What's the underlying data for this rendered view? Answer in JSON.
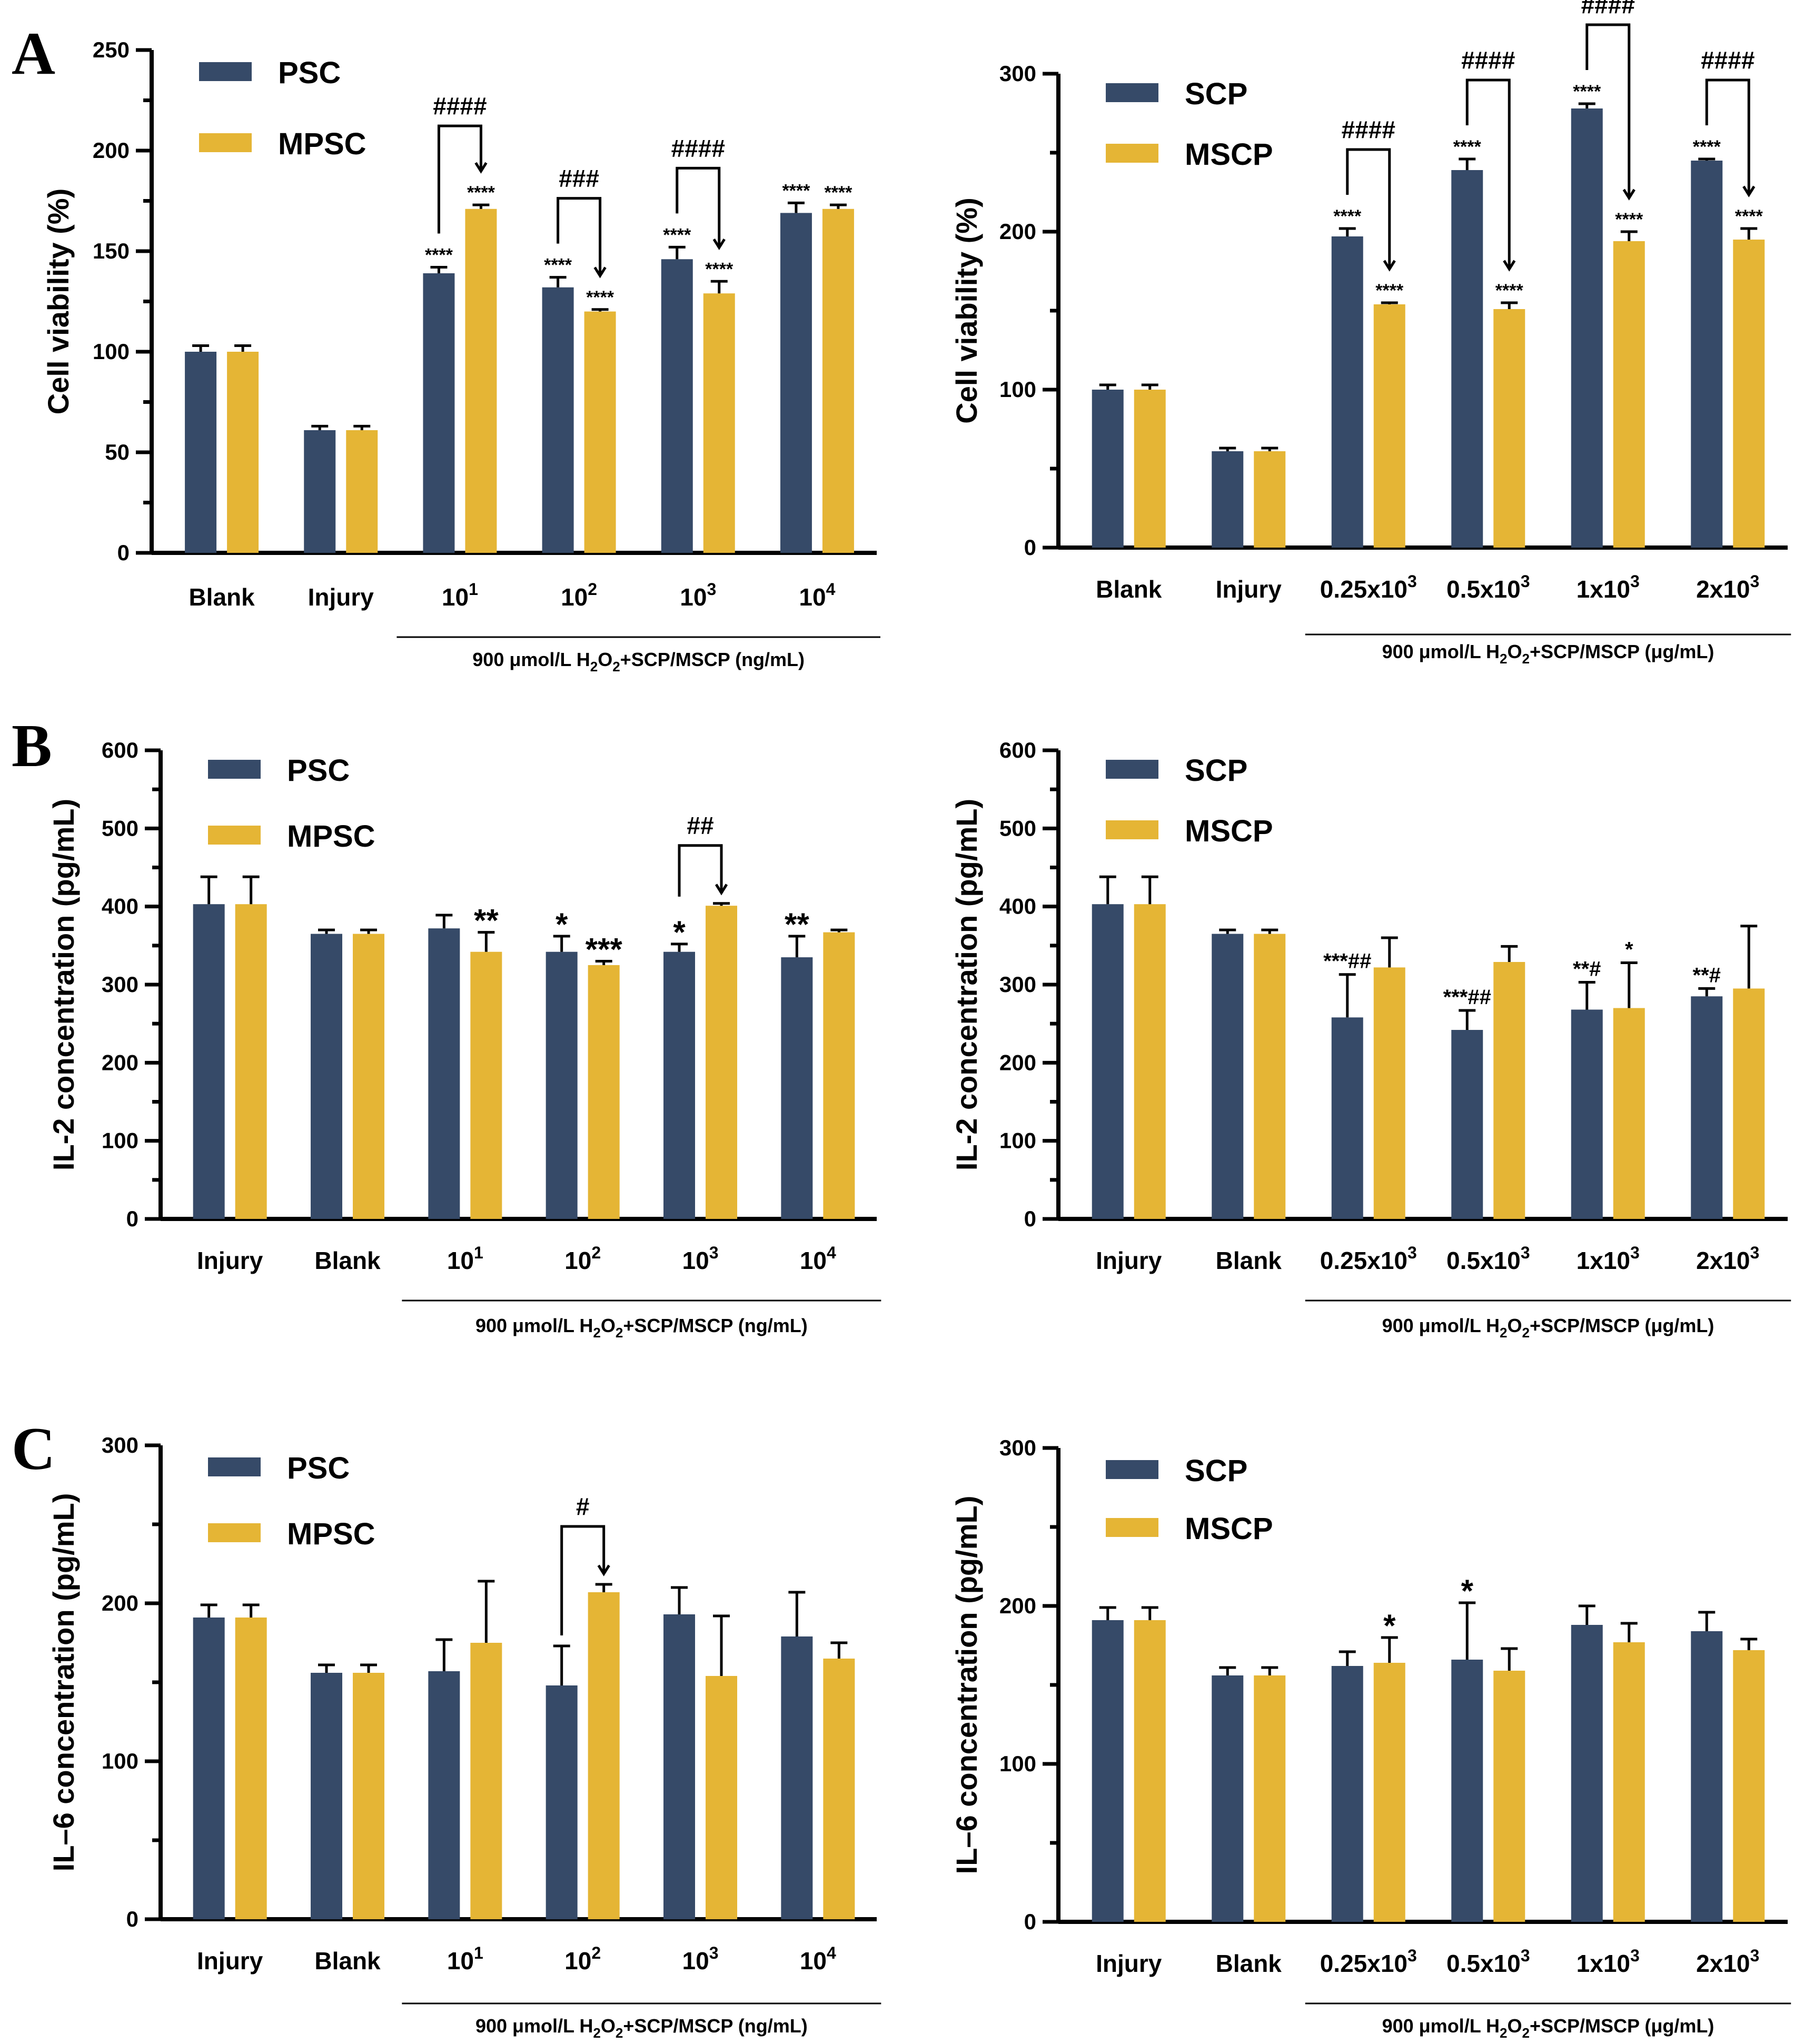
{
  "colors": {
    "series1": "#364a68",
    "series2": "#e5b535"
  },
  "panel_labels": [
    "A",
    "B",
    "C"
  ],
  "chart_data": [
    {
      "id": "A-left",
      "type": "bar",
      "ylabel": "Cell viability (%)",
      "ylim": [
        0,
        250
      ],
      "yticks": [
        0,
        50,
        100,
        150,
        200,
        250
      ],
      "categories": [
        {
          "base": "Blank"
        },
        {
          "base": "Injury"
        },
        {
          "base": "10",
          "sup": "1"
        },
        {
          "base": "10",
          "sup": "2"
        },
        {
          "base": "10",
          "sup": "3"
        },
        {
          "base": "10",
          "sup": "4"
        }
      ],
      "treatment_label": {
        "pre": "900 μmol/L H",
        "sub1": "2",
        "mid": "O",
        "sub2": "2",
        "post": "+SCP/MSCP (ng/mL)"
      },
      "treatment_span": [
        2,
        5
      ],
      "series": [
        {
          "name": "PSC",
          "values": [
            100,
            61,
            139,
            132,
            146,
            169
          ],
          "errors": [
            3,
            2,
            3,
            5,
            6,
            5
          ],
          "annotations": [
            "",
            "",
            "****",
            "****",
            "****",
            "****"
          ]
        },
        {
          "name": "MPSC",
          "values": [
            100,
            61,
            171,
            120,
            129,
            171
          ],
          "errors": [
            3,
            2,
            2,
            1,
            6,
            2
          ],
          "annotations": [
            "",
            "",
            "****",
            "****",
            "****",
            "****"
          ]
        }
      ],
      "brackets": [
        {
          "category": 2,
          "label": "####"
        },
        {
          "category": 3,
          "label": "###"
        },
        {
          "category": 4,
          "label": "####"
        }
      ],
      "annot_size": "small"
    },
    {
      "id": "A-right",
      "type": "bar",
      "ylabel": "Cell viability (%)",
      "ylim": [
        0,
        300
      ],
      "yticks": [
        0,
        100,
        200,
        300
      ],
      "categories": [
        {
          "base": "Blank"
        },
        {
          "base": "Injury"
        },
        {
          "base": "0.25x10",
          "sup": "3"
        },
        {
          "base": "0.5x10",
          "sup": "3"
        },
        {
          "base": "1x10",
          "sup": "3"
        },
        {
          "base": "2x10",
          "sup": "3"
        }
      ],
      "treatment_label": {
        "pre": "900 μmol/L H",
        "sub1": "2",
        "mid": "O",
        "sub2": "2",
        "post": "+SCP/MSCP (μg/mL)"
      },
      "treatment_span": [
        2,
        5
      ],
      "series": [
        {
          "name": "SCP",
          "values": [
            100,
            61,
            197,
            239,
            278,
            245
          ],
          "errors": [
            3,
            2,
            5,
            7,
            3,
            1
          ],
          "annotations": [
            "",
            "",
            "****",
            "****",
            "****",
            "****"
          ]
        },
        {
          "name": "MSCP",
          "values": [
            100,
            61,
            154,
            151,
            194,
            195
          ],
          "errors": [
            3,
            2,
            1,
            4,
            6,
            7
          ],
          "annotations": [
            "",
            "",
            "****",
            "****",
            "****",
            "****"
          ]
        }
      ],
      "brackets": [
        {
          "category": 2,
          "label": "####"
        },
        {
          "category": 3,
          "label": "####"
        },
        {
          "category": 4,
          "label": "####"
        },
        {
          "category": 5,
          "label": "####"
        }
      ],
      "annot_size": "small"
    },
    {
      "id": "B-left",
      "type": "bar",
      "ylabel": "IL-2 concentration  (pg/mL)",
      "ylim": [
        0,
        600
      ],
      "yticks": [
        0,
        100,
        200,
        300,
        400,
        500,
        600
      ],
      "categories": [
        {
          "base": "Injury"
        },
        {
          "base": "Blank"
        },
        {
          "base": "10",
          "sup": "1"
        },
        {
          "base": "10",
          "sup": "2"
        },
        {
          "base": "10",
          "sup": "3"
        },
        {
          "base": "10",
          "sup": "4"
        }
      ],
      "treatment_label": {
        "pre": "900 μmol/L H",
        "sub1": "2",
        "mid": "O",
        "sub2": "2",
        "post": "+SCP/MSCP (ng/mL)"
      },
      "treatment_span": [
        2,
        5
      ],
      "series": [
        {
          "name": "PSC",
          "values": [
            403,
            365,
            372,
            342,
            342,
            335
          ],
          "errors": [
            35,
            5,
            17,
            20,
            10,
            27
          ],
          "annotations": [
            "",
            "",
            "",
            "*",
            "*",
            "**"
          ]
        },
        {
          "name": "MPSC",
          "values": [
            403,
            365,
            342,
            325,
            401,
            367
          ],
          "errors": [
            35,
            5,
            25,
            5,
            3,
            3
          ],
          "annotations": [
            "",
            "",
            "**",
            "***",
            "",
            ""
          ]
        }
      ],
      "brackets": [
        {
          "category": 4,
          "label": "##"
        }
      ],
      "annot_size": "large"
    },
    {
      "id": "B-right",
      "type": "bar",
      "ylabel": "IL-2 concentration  (pg/mL)",
      "ylim": [
        0,
        600
      ],
      "yticks": [
        0,
        100,
        200,
        300,
        400,
        500,
        600
      ],
      "categories": [
        {
          "base": "Injury"
        },
        {
          "base": "Blank"
        },
        {
          "base": "0.25x10",
          "sup": "3"
        },
        {
          "base": "0.5x10",
          "sup": "3"
        },
        {
          "base": "1x10",
          "sup": "3"
        },
        {
          "base": "2x10",
          "sup": "3"
        }
      ],
      "treatment_label": {
        "pre": "900 μmol/L H",
        "sub1": "2",
        "mid": "O",
        "sub2": "2",
        "post": "+SCP/MSCP (μg/mL)"
      },
      "treatment_span": [
        2,
        5
      ],
      "series": [
        {
          "name": "SCP",
          "values": [
            403,
            365,
            258,
            242,
            268,
            285
          ],
          "errors": [
            35,
            5,
            55,
            25,
            35,
            10
          ],
          "annotations": [
            "",
            "",
            "***##",
            "***##",
            "**#",
            "**#"
          ]
        },
        {
          "name": "MSCP",
          "values": [
            403,
            365,
            322,
            329,
            270,
            295
          ],
          "errors": [
            35,
            5,
            38,
            20,
            58,
            80
          ],
          "annotations": [
            "",
            "",
            "",
            "",
            "*",
            ""
          ]
        }
      ],
      "brackets": [],
      "annot_size": "medium"
    },
    {
      "id": "C-left",
      "type": "bar",
      "ylabel": "IL–6 concentration  (pg/mL)",
      "ylim": [
        0,
        300
      ],
      "yticks": [
        0,
        100,
        200,
        300
      ],
      "categories": [
        {
          "base": "Injury"
        },
        {
          "base": "Blank"
        },
        {
          "base": "10",
          "sup": "1"
        },
        {
          "base": "10",
          "sup": "2"
        },
        {
          "base": "10",
          "sup": "3"
        },
        {
          "base": "10",
          "sup": "4"
        }
      ],
      "treatment_label": {
        "pre": "900 μmol/L H",
        "sub1": "2",
        "mid": "O",
        "sub2": "2",
        "post": "+SCP/MSCP (ng/mL)"
      },
      "treatment_span": [
        2,
        5
      ],
      "series": [
        {
          "name": "PSC",
          "values": [
            191,
            156,
            157,
            148,
            193,
            179
          ],
          "errors": [
            8,
            5,
            20,
            25,
            17,
            28
          ],
          "annotations": [
            "",
            "",
            "",
            "",
            "",
            ""
          ]
        },
        {
          "name": "MPSC",
          "values": [
            191,
            156,
            175,
            207,
            154,
            165
          ],
          "errors": [
            8,
            5,
            39,
            5,
            38,
            10
          ],
          "annotations": [
            "",
            "",
            "",
            "",
            "",
            ""
          ]
        }
      ],
      "brackets": [
        {
          "category": 3,
          "label": "#"
        }
      ],
      "annot_size": "large"
    },
    {
      "id": "C-right",
      "type": "bar",
      "ylabel": "IL–6 concentration  (pg/mL)",
      "ylim": [
        0,
        300
      ],
      "yticks": [
        0,
        100,
        200,
        300
      ],
      "categories": [
        {
          "base": "Injury"
        },
        {
          "base": "Blank"
        },
        {
          "base": "0.25x10",
          "sup": "3"
        },
        {
          "base": "0.5x10",
          "sup": "3"
        },
        {
          "base": "1x10",
          "sup": "3"
        },
        {
          "base": "2x10",
          "sup": "3"
        }
      ],
      "treatment_label": {
        "pre": "900 μmol/L H",
        "sub1": "2",
        "mid": "O",
        "sub2": "2",
        "post": "+SCP/MSCP (μg/mL)"
      },
      "treatment_span": [
        2,
        5
      ],
      "series": [
        {
          "name": "SCP",
          "values": [
            191,
            156,
            162,
            166,
            188,
            184
          ],
          "errors": [
            8,
            5,
            9,
            36,
            12,
            12
          ],
          "annotations": [
            "",
            "",
            "",
            "*",
            "",
            ""
          ]
        },
        {
          "name": "MSCP",
          "values": [
            191,
            156,
            164,
            159,
            177,
            172
          ],
          "errors": [
            8,
            5,
            16,
            14,
            12,
            7
          ],
          "annotations": [
            "",
            "",
            "*",
            "",
            "",
            ""
          ]
        }
      ],
      "brackets": [],
      "annot_size": "large"
    }
  ]
}
